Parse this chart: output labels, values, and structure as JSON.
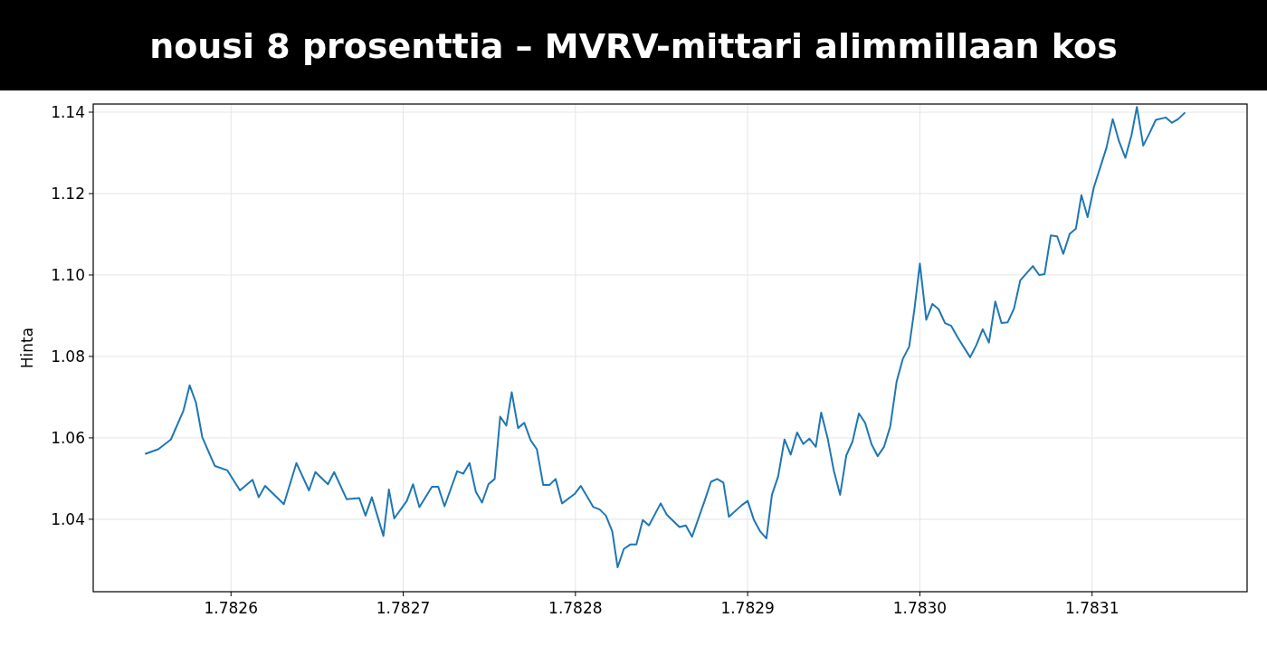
{
  "chart_data": {
    "type": "line",
    "title": "nousi 8 prosenttia – MVRV-mittari alimmillaan kos",
    "ylabel": "Hinta",
    "xlim": [
      1.78252,
      1.78319
    ],
    "xticks": [
      {
        "value": 1.7826,
        "label": "1.7826"
      },
      {
        "value": 1.7827,
        "label": "1.7827"
      },
      {
        "value": 1.7828,
        "label": "1.7828"
      },
      {
        "value": 1.7829,
        "label": "1.7829"
      },
      {
        "value": 1.783,
        "label": "1.7830"
      },
      {
        "value": 1.7831,
        "label": "1.7831"
      }
    ],
    "ylim": [
      1.0222,
      1.142
    ],
    "yticks": [
      {
        "value": 1.04,
        "label": "1.04"
      },
      {
        "value": 1.06,
        "label": "1.06"
      },
      {
        "value": 1.08,
        "label": "1.08"
      },
      {
        "value": 1.1,
        "label": "1.10"
      },
      {
        "value": 1.12,
        "label": "1.12"
      },
      {
        "value": 1.14,
        "label": "1.14"
      }
    ],
    "grid": true,
    "series": [
      {
        "color": "#1f77b4",
        "x": [
          1.7825505,
          1.7825578,
          1.7825651,
          1.7825724,
          1.782576,
          1.7825797,
          1.7825833,
          1.7825906,
          1.7825979,
          1.7826052,
          1.7826125,
          1.7826161,
          1.7826198,
          1.7826307,
          1.782638,
          1.7826453,
          1.782649,
          1.7826563,
          1.7826599,
          1.7826672,
          1.7826745,
          1.7826781,
          1.7826818,
          1.7826885,
          1.7826917,
          1.7826948,
          1.7827021,
          1.7827057,
          1.7827094,
          1.7827167,
          1.7827203,
          1.782724,
          1.7827313,
          1.7827349,
          1.7827385,
          1.7827422,
          1.7827458,
          1.7827495,
          1.7827531,
          1.7827563,
          1.7827599,
          1.782763,
          1.7827667,
          1.7827703,
          1.782774,
          1.7827776,
          1.7827813,
          1.7827849,
          1.7827885,
          1.7827922,
          1.7827995,
          1.7828031,
          1.7828104,
          1.7828141,
          1.7828177,
          1.7828214,
          1.7828245,
          1.7828281,
          1.7828318,
          1.7828354,
          1.7828391,
          1.7828427,
          1.7828495,
          1.7828531,
          1.7828604,
          1.7828641,
          1.7828677,
          1.782875,
          1.7828787,
          1.7828823,
          1.7828859,
          1.7828891,
          1.7828964,
          1.7829,
          1.7829037,
          1.7829073,
          1.7829109,
          1.7829141,
          1.7829177,
          1.7829214,
          1.782925,
          1.7829287,
          1.7829323,
          1.7829359,
          1.7829396,
          1.7829427,
          1.7829464,
          1.78295,
          1.7829537,
          1.7829573,
          1.7829609,
          1.7829646,
          1.7829682,
          1.7829719,
          1.7829755,
          1.7829792,
          1.7829828,
          1.7829865,
          1.7829901,
          1.7829938,
          1.7829969,
          1.783,
          1.7830037,
          1.7830073,
          1.7830109,
          1.7830146,
          1.7830182,
          1.7830219,
          1.7830292,
          1.7830328,
          1.7830365,
          1.7830401,
          1.7830438,
          1.7830474,
          1.783051,
          1.7830547,
          1.7830583,
          1.7830656,
          1.7830693,
          1.7830724,
          1.783076,
          1.7830797,
          1.7830833,
          1.783087,
          1.7830906,
          1.7830938,
          1.7830974,
          1.783101,
          1.7831083,
          1.783112,
          1.7831156,
          1.7831193,
          1.7831229,
          1.783126,
          1.7831297,
          1.7831333,
          1.783137,
          1.7831427,
          1.7831464,
          1.78315,
          1.7831537
        ],
        "values": [
          1.0561,
          1.0572,
          1.0596,
          1.0667,
          1.0729,
          1.0686,
          1.0602,
          1.0531,
          1.052,
          1.0471,
          1.0497,
          1.0454,
          1.0482,
          1.0437,
          1.0538,
          1.0471,
          1.0516,
          1.0486,
          1.0516,
          1.0449,
          1.0452,
          1.0409,
          1.0454,
          1.0359,
          1.0473,
          1.0402,
          1.0445,
          1.0486,
          1.043,
          1.048,
          1.048,
          1.0432,
          1.0518,
          1.0512,
          1.0538,
          1.0467,
          1.0441,
          1.0486,
          1.0499,
          1.0652,
          1.063,
          1.0712,
          1.0624,
          1.0637,
          1.0594,
          1.0572,
          1.0484,
          1.0484,
          1.0499,
          1.0439,
          1.0462,
          1.0482,
          1.043,
          1.0424,
          1.0409,
          1.037,
          1.0282,
          1.0327,
          1.0338,
          1.0338,
          1.0398,
          1.0385,
          1.0439,
          1.0411,
          1.0381,
          1.0385,
          1.0357,
          1.0445,
          1.0492,
          1.0499,
          1.049,
          1.0406,
          1.0434,
          1.0445,
          1.0398,
          1.037,
          1.0353,
          1.046,
          1.0505,
          1.0596,
          1.0559,
          1.0613,
          1.0585,
          1.0598,
          1.0578,
          1.0662,
          1.06,
          1.052,
          1.046,
          1.0557,
          1.0591,
          1.066,
          1.0637,
          1.0585,
          1.0555,
          1.0578,
          1.0628,
          1.0738,
          1.0794,
          1.0824,
          1.0918,
          1.1028,
          1.089,
          1.0929,
          1.0916,
          1.0882,
          1.0875,
          1.0847,
          1.0798,
          1.0828,
          1.0867,
          1.0834,
          1.0935,
          1.0882,
          1.0884,
          1.0918,
          1.0987,
          1.1022,
          1.1,
          1.1002,
          1.1097,
          1.1095,
          1.1052,
          1.1101,
          1.1114,
          1.1196,
          1.1142,
          1.1215,
          1.1312,
          1.1383,
          1.1329,
          1.1288,
          1.1344,
          1.1413,
          1.1318,
          1.1348,
          1.1381,
          1.1387,
          1.1374,
          1.1383,
          1.1398
        ]
      }
    ]
  }
}
